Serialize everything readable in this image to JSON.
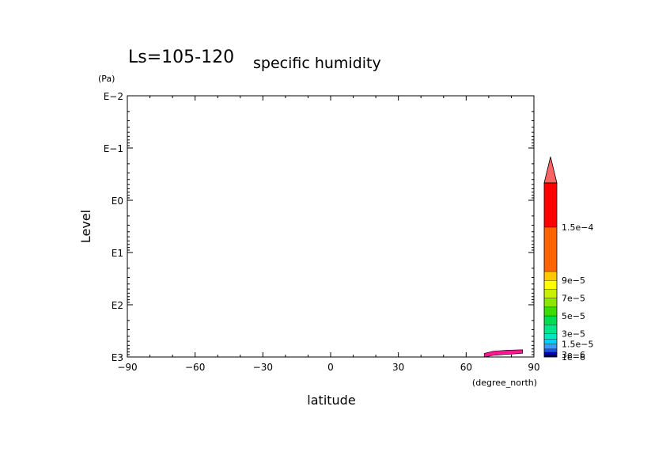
{
  "chart_data": {
    "type": "contour",
    "title_prefix": "Ls=105-120",
    "title": "specific humidity",
    "xlabel": "latitude",
    "xunit": "(degree_north)",
    "ylabel": "Level",
    "yunit": "(Pa)",
    "xlim": [
      -90,
      90
    ],
    "ylim_log10": [
      -2,
      3
    ],
    "y_scale": "log",
    "y_inverted": true,
    "x_ticks": [
      -90,
      -60,
      -30,
      0,
      30,
      60,
      90
    ],
    "x_tick_labels": [
      "−90",
      "−60",
      "−30",
      "0",
      "30",
      "60",
      "90"
    ],
    "y_ticks_log10": [
      -2,
      -1,
      0,
      1,
      2,
      3
    ],
    "y_tick_labels": [
      "E−2",
      "E−1",
      "E0",
      "E1",
      "E2",
      "E3"
    ],
    "contour_region": {
      "description_visible": "small filled patch near 68-85N at lowest levels",
      "points": [
        [
          68,
          2.93
        ],
        [
          72,
          2.89
        ],
        [
          78,
          2.87
        ],
        [
          85,
          2.86
        ],
        [
          85,
          2.93
        ],
        [
          78,
          2.95
        ],
        [
          72,
          2.97
        ],
        [
          68,
          3.0
        ]
      ],
      "color": "#ff1493"
    },
    "colorbar": {
      "levels": [
        1e-06,
        3e-06,
        6e-06,
        1e-05,
        1.5e-05,
        2e-05,
        3e-05,
        4e-05,
        5e-05,
        6e-05,
        7e-05,
        8e-05,
        9e-05,
        0.0001,
        0.00015,
        0.0002
      ],
      "colors": [
        "#000066",
        "#0000cc",
        "#1e50ff",
        "#3c9bff",
        "#00d2ff",
        "#00e6c8",
        "#00e68c",
        "#00dc50",
        "#3cdc00",
        "#8ce600",
        "#c8f000",
        "#ffff00",
        "#ffc800",
        "#ff6400",
        "#ff0000"
      ],
      "extend_color": "#ff6464",
      "labels": [
        {
          "value": 1e-06,
          "text": "1e−6"
        },
        {
          "value": 3e-06,
          "text": "3e−6"
        },
        {
          "value": 1.5e-05,
          "text": "1.5e−5"
        },
        {
          "value": 3e-05,
          "text": "3e−5"
        },
        {
          "value": 5e-05,
          "text": "5e−5"
        },
        {
          "value": 7e-05,
          "text": "7e−5"
        },
        {
          "value": 9e-05,
          "text": "9e−5"
        },
        {
          "value": 0.00015,
          "text": "1.5e−4"
        }
      ]
    },
    "grid": false
  }
}
